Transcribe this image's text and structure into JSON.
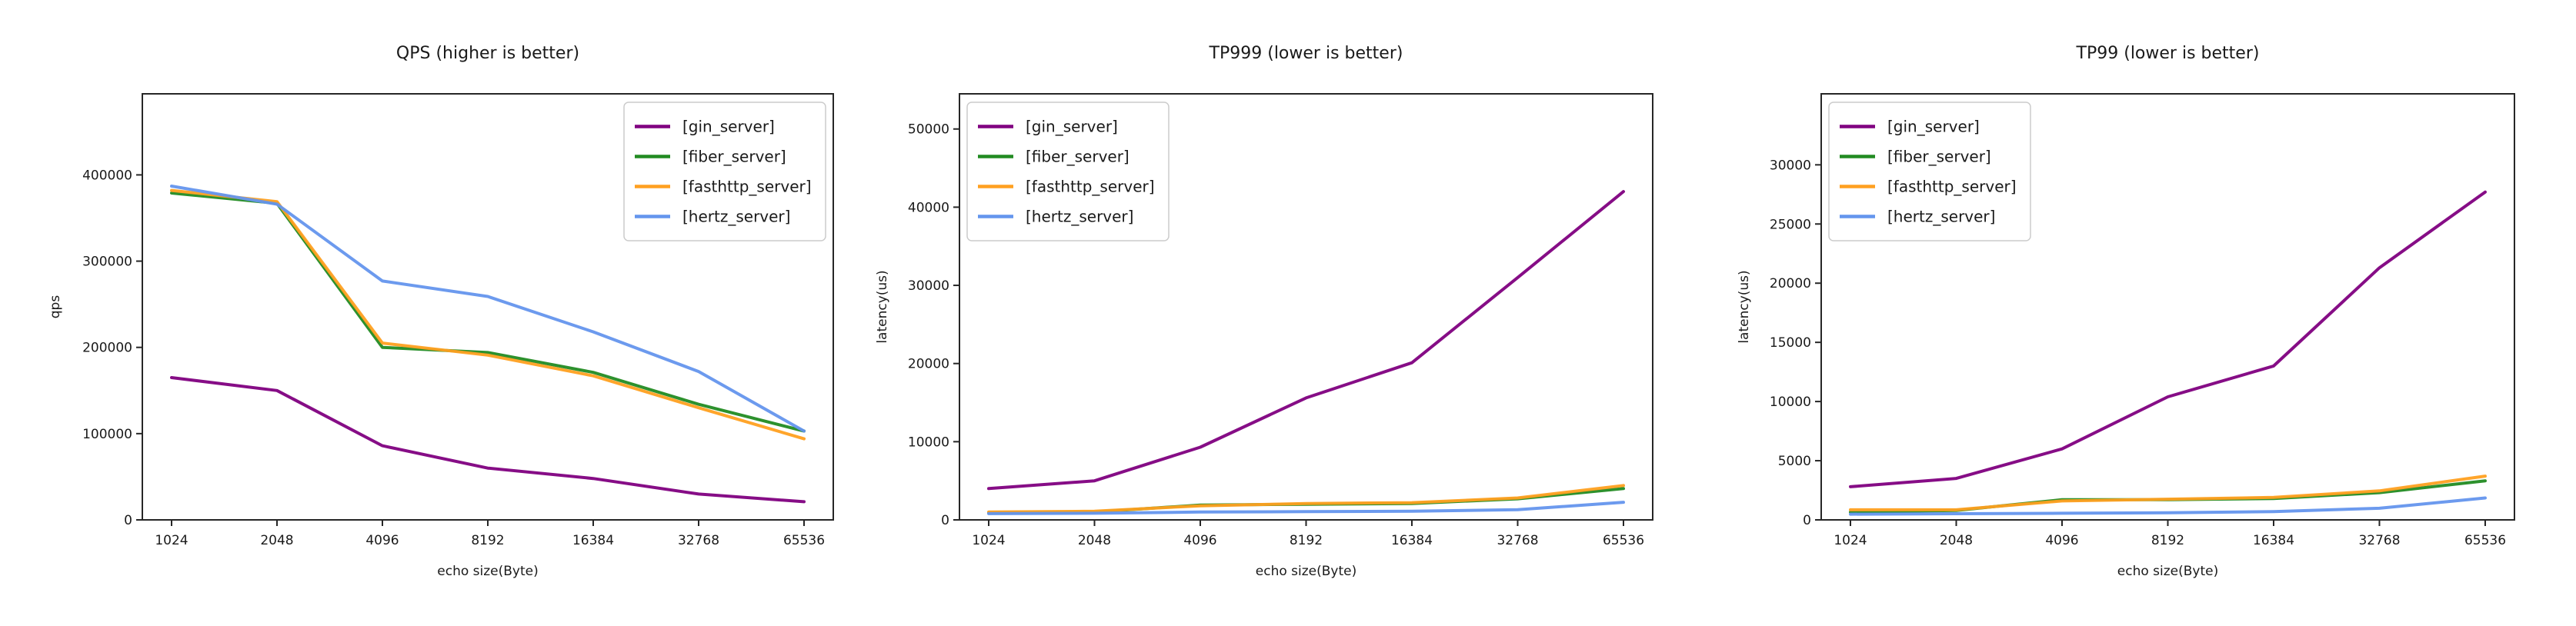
{
  "figure": {
    "background": "#ffffff",
    "text_color": "#1a1a1a",
    "axis_color": "#262626"
  },
  "chart_data": [
    {
      "type": "line",
      "title": "QPS (higher is better)",
      "xlabel": "echo size(Byte)",
      "ylabel": "qps",
      "categories": [
        "1024",
        "2048",
        "4096",
        "8192",
        "16384",
        "32768",
        "65536"
      ],
      "yticks": [
        0,
        100000,
        200000,
        300000,
        400000
      ],
      "ylim": [
        0,
        494000
      ],
      "grid": false,
      "legend_position": "top-right",
      "series": [
        {
          "name": "[gin_server]",
          "color": "#800080",
          "values": [
            165000,
            150000,
            86000,
            60000,
            48000,
            30000,
            21000
          ]
        },
        {
          "name": "[fiber_server]",
          "color": "#228B22",
          "values": [
            379000,
            367000,
            200000,
            194000,
            171000,
            134000,
            103000
          ]
        },
        {
          "name": "[fasthttp_server]",
          "color": "#FFA020",
          "values": [
            382000,
            369000,
            205000,
            191000,
            167000,
            130000,
            94000
          ]
        },
        {
          "name": "[hertz_server]",
          "color": "#6495ED",
          "values": [
            387000,
            366000,
            277000,
            259000,
            218000,
            172000,
            103000
          ]
        }
      ]
    },
    {
      "type": "line",
      "title": "TP999 (lower is better)",
      "xlabel": "echo size(Byte)",
      "ylabel": "latency(us)",
      "categories": [
        "1024",
        "2048",
        "4096",
        "8192",
        "16384",
        "32768",
        "65536"
      ],
      "yticks": [
        0,
        10000,
        20000,
        30000,
        40000,
        50000
      ],
      "ylim": [
        0,
        54500
      ],
      "grid": false,
      "legend_position": "top-left",
      "series": [
        {
          "name": "[gin_server]",
          "color": "#800080",
          "values": [
            4000,
            5000,
            9300,
            15600,
            20100,
            31000,
            42000
          ]
        },
        {
          "name": "[fiber_server]",
          "color": "#228B22",
          "values": [
            900,
            1000,
            1900,
            2000,
            2100,
            2700,
            4000
          ]
        },
        {
          "name": "[fasthttp_server]",
          "color": "#FFA020",
          "values": [
            1000,
            1100,
            1800,
            2100,
            2200,
            2800,
            4400
          ]
        },
        {
          "name": "[hertz_server]",
          "color": "#6495ED",
          "values": [
            800,
            850,
            1000,
            1050,
            1100,
            1300,
            2250
          ]
        }
      ]
    },
    {
      "type": "line",
      "title": "TP99 (lower is better)",
      "xlabel": "echo size(Byte)",
      "ylabel": "latency(us)",
      "categories": [
        "1024",
        "2048",
        "4096",
        "8192",
        "16384",
        "32768",
        "65536"
      ],
      "yticks": [
        0,
        5000,
        10000,
        15000,
        20000,
        25000,
        30000
      ],
      "ylim": [
        0,
        36000
      ],
      "grid": false,
      "legend_position": "top-left",
      "series": [
        {
          "name": "[gin_server]",
          "color": "#800080",
          "values": [
            2800,
            3500,
            6000,
            10400,
            13000,
            21300,
            27700
          ]
        },
        {
          "name": "[fiber_server]",
          "color": "#228B22",
          "values": [
            650,
            800,
            1700,
            1700,
            1800,
            2300,
            3300
          ]
        },
        {
          "name": "[fasthttp_server]",
          "color": "#FFA020",
          "values": [
            850,
            850,
            1600,
            1750,
            1900,
            2450,
            3700
          ]
        },
        {
          "name": "[hertz_server]",
          "color": "#6495ED",
          "values": [
            480,
            520,
            560,
            600,
            700,
            980,
            1850
          ]
        }
      ]
    }
  ]
}
